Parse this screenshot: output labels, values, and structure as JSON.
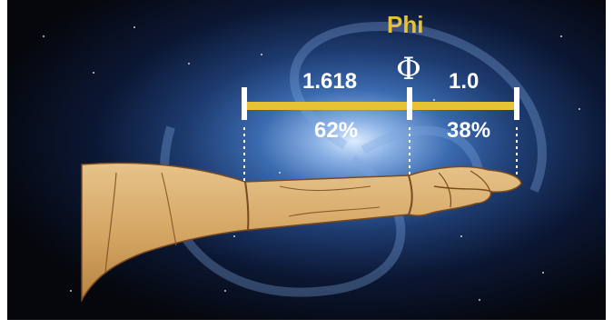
{
  "title": "Phi",
  "symbol": "Φ",
  "segments": [
    {
      "value": "1.618",
      "percent": "62%"
    },
    {
      "value": "1.0",
      "percent": "38%"
    }
  ],
  "colors": {
    "accent": "#E6C235",
    "text": "#FFFFFF",
    "background": "#05070D",
    "galaxy": "#2F5A9A",
    "arm": "#D6A865"
  }
}
